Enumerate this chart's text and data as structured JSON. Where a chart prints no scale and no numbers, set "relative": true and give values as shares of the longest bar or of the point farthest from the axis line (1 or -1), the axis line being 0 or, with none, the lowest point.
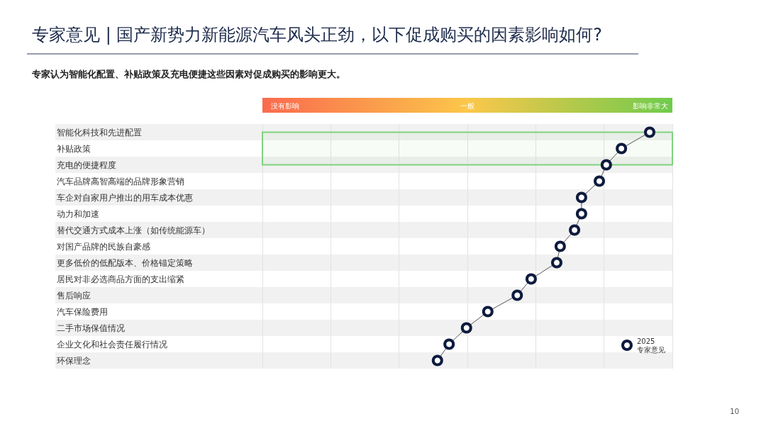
{
  "chart_data": {
    "type": "line",
    "title": "专家意见 | 国产新势力新能源汽车风头正劲，以下促成购买的因素影响如何?",
    "subtitle": "专家认为智能化配置、补贴政策及充电便捷这些因素对促成购买的影响更大。",
    "orientation": "horizontal",
    "relative": true,
    "categories": [
      "智能化科技和先进配置",
      "补贴政策",
      "充电的便捷程度",
      "汽车品牌高智高端的品牌形象营销",
      "车企对自家用户推出的用车成本优惠",
      "动力和加速",
      "替代交通方式成本上涨（如传统能源车）",
      "对国产品牌的民族自豪感",
      "更多低价的低配版本、价格锚定策略",
      "居民对非必选商品方面的支出缩紧",
      "售后响应",
      "汽车保险费用",
      "二手市场保值情况",
      "企业文化和社会责任履行情况",
      "环保理念"
    ],
    "series": [
      {
        "name": "2025\n专家意见",
        "color": "#0d1b3e",
        "values": [
          1.0,
          0.927,
          0.888,
          0.87,
          0.824,
          0.824,
          0.806,
          0.769,
          0.76,
          0.694,
          0.658,
          0.582,
          0.527,
          0.482,
          0.452
        ]
      }
    ],
    "bands": [
      {
        "axis": "y",
        "from": "智能化科技和先进配置",
        "to": "充电的便捷程度",
        "color": "#7ed37e"
      }
    ],
    "annotations": [
      "没有影响",
      "一般",
      "影响非常大",
      "10"
    ],
    "grid": "x",
    "legend": "bottom right",
    "marker": "circle",
    "line_style": "solid"
  }
}
